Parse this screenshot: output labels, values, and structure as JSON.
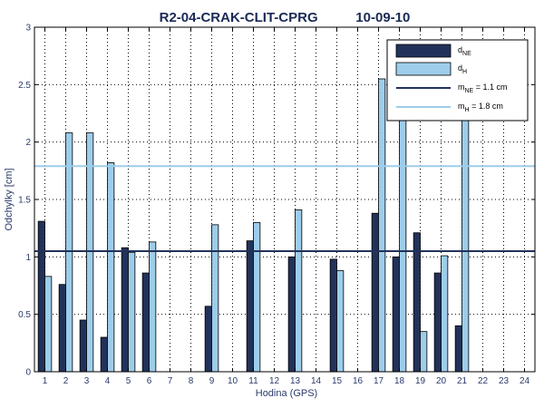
{
  "chart_data": {
    "type": "bar",
    "title": "R2-04-CRAK-CLIT-CPRG          10-09-10",
    "xlabel": "Hodina (GPS)",
    "ylabel": "Odchylky [cm]",
    "ylim": [
      0,
      3
    ],
    "yticks": [
      "0",
      "0.5",
      "1",
      "1.5",
      "2",
      "2.5",
      "3"
    ],
    "categories": [
      "1",
      "2",
      "3",
      "4",
      "5",
      "6",
      "7",
      "8",
      "9",
      "10",
      "11",
      "12",
      "13",
      "14",
      "15",
      "16",
      "17",
      "18",
      "19",
      "20",
      "21",
      "22",
      "23",
      "24"
    ],
    "series": [
      {
        "name": "dNE",
        "color": "#22325a",
        "values": [
          1.31,
          0.76,
          0.45,
          0.3,
          1.08,
          0.86,
          null,
          null,
          0.57,
          null,
          1.14,
          null,
          1.0,
          null,
          0.98,
          null,
          1.38,
          1.0,
          1.21,
          0.86,
          0.4,
          null,
          null,
          null
        ]
      },
      {
        "name": "dH",
        "color": "#9dcdea",
        "values": [
          0.83,
          2.08,
          2.08,
          1.82,
          1.04,
          1.13,
          null,
          null,
          1.28,
          null,
          1.3,
          null,
          1.41,
          null,
          0.88,
          null,
          2.55,
          2.25,
          0.35,
          1.01,
          2.25,
          null,
          null,
          null
        ]
      }
    ],
    "mean_lines": [
      {
        "name": "mNE = 1.1 cm",
        "value": 1.05,
        "color": "#22325a"
      },
      {
        "name": "mH = 1.8 cm",
        "value": 1.79,
        "color": "#9dcdea"
      }
    ],
    "legend": {
      "position": "top-right",
      "entries": [
        {
          "base": "d",
          "sub": "NE",
          "rest": ""
        },
        {
          "base": "d",
          "sub": "H",
          "rest": ""
        },
        {
          "base": "m",
          "sub": "NE",
          "rest": " = 1.1 cm"
        },
        {
          "base": "m",
          "sub": "H",
          "rest": " = 1.8 cm"
        }
      ]
    },
    "grid": true
  }
}
